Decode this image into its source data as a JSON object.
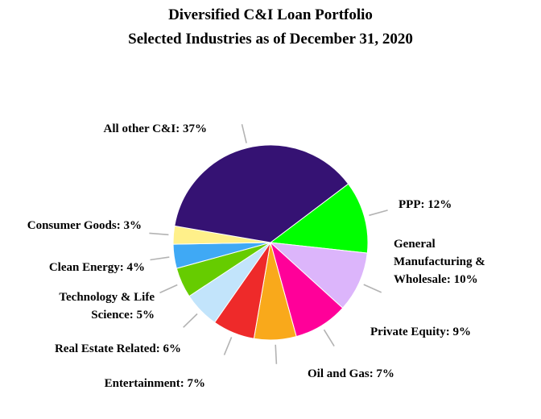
{
  "chart_data": {
    "type": "pie",
    "title": "Diversified C&I Loan Portfolio",
    "subtitle": "Selected Industries as of December 31, 2020",
    "slices": [
      {
        "name": "PPP",
        "value": 12,
        "label": "PPP: 12%",
        "color": "#00ff00"
      },
      {
        "name": "General Manufacturing & Wholesale",
        "value": 10,
        "label_lines": [
          "General",
          "Manufacturing &",
          "Wholesale: 10%"
        ],
        "color": "#dcb5fb"
      },
      {
        "name": "Private Equity",
        "value": 9,
        "label": "Private Equity: 9%",
        "color": "#ff0099"
      },
      {
        "name": "Oil and Gas",
        "value": 7,
        "label": "Oil and Gas: 7%",
        "color": "#f9a91b"
      },
      {
        "name": "Entertainment",
        "value": 7,
        "label": "Entertainment: 7%",
        "color": "#ee2a2a"
      },
      {
        "name": "Real Estate Related",
        "value": 6,
        "label": "Real Estate Related: 6%",
        "color": "#c2e4fb"
      },
      {
        "name": "Technology & Life Science",
        "value": 5,
        "label_lines": [
          "Technology & Life",
          "Science: 5%"
        ],
        "color": "#66cc00"
      },
      {
        "name": "Clean Energy",
        "value": 4,
        "label": "Clean Energy: 4%",
        "color": "#3fa9f5"
      },
      {
        "name": "Consumer Goods",
        "value": 3,
        "label": "Consumer Goods: 3%",
        "color": "#fff08a"
      },
      {
        "name": "All other C&I",
        "value": 37,
        "label": "All other C&I: 37%",
        "color": "#351273"
      }
    ]
  }
}
